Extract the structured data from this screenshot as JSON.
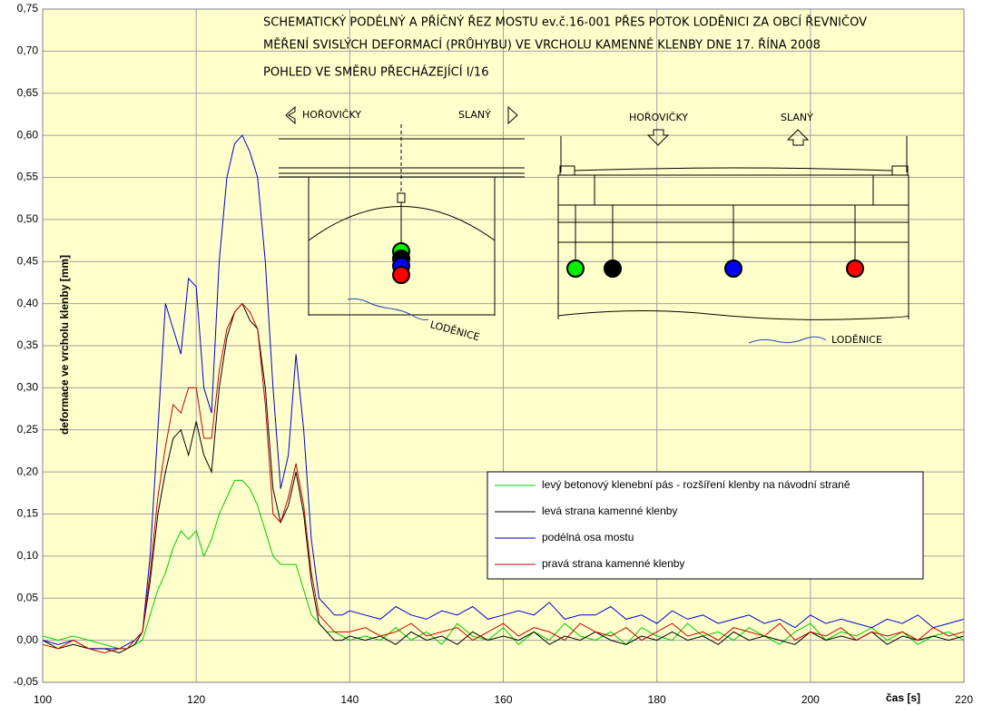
{
  "chart_data": {
    "type": "line",
    "title": [
      "SCHEMATICKÝ PODÉLNÝ A PŘÍČNÝ ŘEZ MOSTU ev.č.16-001 PŘES POTOK LODĚNICI ZA OBCÍ ŘEVNIČOV",
      "MĚŘENÍ SVISLÝCH DEFORMACÍ (PRŮHYBU) VE VRCHOLU KAMENNÉ KLENBY DNE 17. ŘÍNA 2008",
      "POHLED VE SMĚRU PŘECHÁZEJÍCÍ I/16"
    ],
    "annotations": [
      "HOŘOVIČKY",
      "SLANÝ",
      "LODĚNICE",
      "HOŘOVIČKY",
      "SLANÝ",
      "LODĚNICE"
    ],
    "xlabel": "čas [s]",
    "ylabel": "deformace ve vrcholu klenby  [mm]",
    "xlim": [
      100,
      220
    ],
    "xticks": [
      100,
      120,
      140,
      160,
      180,
      200,
      220
    ],
    "ylim": [
      -0.05,
      0.75
    ],
    "yticks": [
      {
        "value": -0.05,
        "label": "-0,05"
      },
      {
        "value": 0,
        "label": "0,00"
      },
      {
        "value": 0.05,
        "label": "0,05"
      },
      {
        "value": 0.1,
        "label": "0,10"
      },
      {
        "value": 0.15,
        "label": "0,15"
      },
      {
        "value": 0.2,
        "label": "0,20"
      },
      {
        "value": 0.25,
        "label": "0,25"
      },
      {
        "value": 0.3,
        "label": "0,30"
      },
      {
        "value": 0.35,
        "label": "0,35"
      },
      {
        "value": 0.4,
        "label": "0,40"
      },
      {
        "value": 0.45,
        "label": "0,45"
      },
      {
        "value": 0.5,
        "label": "0,50"
      },
      {
        "value": 0.55,
        "label": "0,55"
      },
      {
        "value": 0.6,
        "label": "0,60"
      },
      {
        "value": 0.65,
        "label": "0,65"
      },
      {
        "value": 0.7,
        "label": "0,70"
      },
      {
        "value": 0.75,
        "label": "0,75"
      }
    ],
    "grid": true,
    "x": [
      100,
      102,
      104,
      106,
      108,
      110,
      111,
      112,
      113,
      114,
      115,
      116,
      117,
      118,
      119,
      120,
      121,
      122,
      123,
      124,
      125,
      126,
      127,
      128,
      129,
      130,
      131,
      132,
      133,
      134,
      135,
      136,
      137,
      138,
      139,
      140,
      142,
      144,
      146,
      148,
      150,
      152,
      154,
      156,
      158,
      160,
      162,
      164,
      166,
      168,
      170,
      172,
      174,
      176,
      178,
      180,
      182,
      184,
      186,
      188,
      190,
      192,
      194,
      196,
      198,
      200,
      202,
      204,
      206,
      208,
      210,
      212,
      214,
      216,
      218,
      220
    ],
    "series": [
      {
        "name": "levý betonový klenební pás - rozšíření klenby na návodní straně",
        "color": "#00cc00",
        "values": [
          0.005,
          0.0,
          0.005,
          0.0,
          -0.005,
          -0.01,
          -0.01,
          -0.005,
          0.0,
          0.03,
          0.06,
          0.08,
          0.11,
          0.13,
          0.12,
          0.13,
          0.1,
          0.12,
          0.15,
          0.17,
          0.19,
          0.19,
          0.18,
          0.16,
          0.13,
          0.1,
          0.09,
          0.09,
          0.09,
          0.06,
          0.03,
          0.02,
          0.01,
          0.01,
          0.005,
          0.0,
          0.005,
          0.0,
          0.015,
          0.0,
          0.01,
          -0.005,
          0.02,
          0.005,
          0.0,
          0.015,
          -0.005,
          0.01,
          0.0,
          0.02,
          0.005,
          0.0,
          0.01,
          -0.005,
          0.015,
          0.005,
          0.0,
          0.02,
          0.005,
          0.01,
          0.0,
          0.015,
          0.005,
          -0.005,
          0.01,
          0.02,
          0.0,
          0.01,
          0.005,
          0.015,
          0.0,
          0.01,
          -0.005,
          0.005,
          0.01,
          0.0
        ]
      },
      {
        "name": "levá strana kamenné klenby",
        "color": "#000000",
        "values": [
          0.0,
          -0.01,
          -0.005,
          -0.01,
          -0.01,
          -0.015,
          -0.01,
          -0.005,
          0.01,
          0.07,
          0.15,
          0.2,
          0.24,
          0.25,
          0.22,
          0.26,
          0.22,
          0.2,
          0.3,
          0.36,
          0.39,
          0.4,
          0.38,
          0.37,
          0.3,
          0.18,
          0.14,
          0.16,
          0.2,
          0.15,
          0.07,
          0.02,
          0.01,
          0.0,
          0.0,
          0.005,
          0.0,
          0.005,
          -0.005,
          0.01,
          0.0,
          0.005,
          -0.005,
          0.01,
          0.0,
          0.005,
          0.0,
          0.01,
          -0.005,
          0.005,
          0.0,
          0.01,
          0.0,
          -0.005,
          0.005,
          0.0,
          0.01,
          0.0,
          0.005,
          -0.005,
          0.01,
          0.0,
          0.005,
          0.0,
          -0.005,
          0.01,
          0.0,
          0.005,
          0.0,
          0.01,
          -0.005,
          0.005,
          0.0,
          0.005,
          0.0,
          0.005
        ]
      },
      {
        "name": "podélná osa mostu",
        "color": "#0000cc",
        "values": [
          0.0,
          -0.005,
          0.0,
          -0.01,
          -0.01,
          -0.01,
          -0.005,
          0.0,
          0.01,
          0.1,
          0.25,
          0.4,
          0.37,
          0.34,
          0.43,
          0.42,
          0.3,
          0.27,
          0.45,
          0.55,
          0.59,
          0.6,
          0.58,
          0.55,
          0.45,
          0.3,
          0.18,
          0.22,
          0.34,
          0.25,
          0.12,
          0.05,
          0.04,
          0.03,
          0.03,
          0.035,
          0.03,
          0.025,
          0.04,
          0.03,
          0.025,
          0.035,
          0.03,
          0.04,
          0.025,
          0.03,
          0.035,
          0.03,
          0.045,
          0.025,
          0.03,
          0.03,
          0.04,
          0.025,
          0.03,
          0.02,
          0.035,
          0.025,
          0.03,
          0.02,
          0.025,
          0.03,
          0.02,
          0.025,
          0.015,
          0.03,
          0.02,
          0.025,
          0.02,
          0.015,
          0.025,
          0.02,
          0.03,
          0.015,
          0.02,
          0.025
        ]
      },
      {
        "name": "pravá strana kamenné klenby",
        "color": "#cc0000",
        "values": [
          -0.005,
          -0.01,
          0.0,
          -0.01,
          -0.015,
          -0.01,
          -0.01,
          0.0,
          0.01,
          0.08,
          0.17,
          0.23,
          0.28,
          0.27,
          0.3,
          0.3,
          0.24,
          0.24,
          0.32,
          0.37,
          0.39,
          0.4,
          0.39,
          0.37,
          0.28,
          0.15,
          0.14,
          0.17,
          0.21,
          0.16,
          0.08,
          0.03,
          0.02,
          0.01,
          0.01,
          0.01,
          0.015,
          0.005,
          0.01,
          0.02,
          0.005,
          0.01,
          0.015,
          0.0,
          0.01,
          0.02,
          0.005,
          0.015,
          0.01,
          0.0,
          0.02,
          0.01,
          0.005,
          0.015,
          0.0,
          0.01,
          0.02,
          0.005,
          0.01,
          0.0,
          0.015,
          0.01,
          0.005,
          0.02,
          0.0,
          0.01,
          0.005,
          0.015,
          0.0,
          0.01,
          0.005,
          0.01,
          0.0,
          0.015,
          0.005,
          0.01
        ]
      }
    ]
  }
}
